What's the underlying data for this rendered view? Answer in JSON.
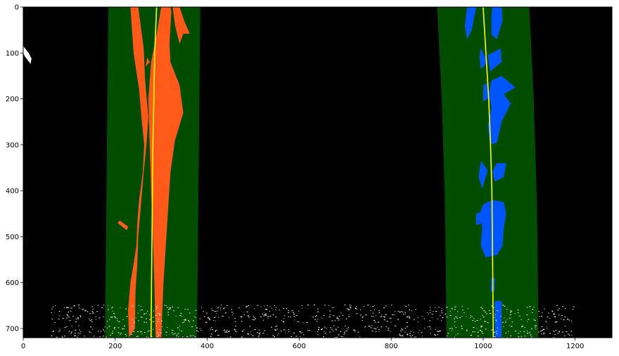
{
  "chart_data": {
    "type": "scatter",
    "title": "",
    "xlabel": "",
    "ylabel": "",
    "xlim": [
      0,
      1280
    ],
    "ylim": [
      720,
      0
    ],
    "y_inverted": true,
    "grid": false,
    "background": "#000000",
    "x_ticks": [
      0,
      200,
      400,
      600,
      800,
      1000,
      1200
    ],
    "y_ticks": [
      0,
      100,
      200,
      300,
      400,
      500,
      600,
      700
    ],
    "colors": {
      "search_window": "#004d00",
      "left_lane_pixels": "#ff5a1a",
      "right_lane_pixels": "#0055ff",
      "fit_line": "#ffff00",
      "noise_pixels": "#ffffff"
    },
    "search_windows": [
      {
        "name": "left-window",
        "left_edge": [
          [
            185,
            0
          ],
          [
            184,
            100
          ],
          [
            183,
            200
          ],
          [
            182,
            300
          ],
          [
            181,
            400
          ],
          [
            180,
            500
          ],
          [
            179,
            600
          ],
          [
            178,
            720
          ]
        ],
        "right_edge": [
          [
            385,
            0
          ],
          [
            384,
            100
          ],
          [
            383,
            200
          ],
          [
            382,
            300
          ],
          [
            381,
            400
          ],
          [
            380,
            500
          ],
          [
            379,
            600
          ],
          [
            378,
            720
          ]
        ]
      },
      {
        "name": "right-window",
        "left_edge": [
          [
            900,
            0
          ],
          [
            905,
            100
          ],
          [
            910,
            200
          ],
          [
            913,
            300
          ],
          [
            916,
            400
          ],
          [
            918,
            500
          ],
          [
            919,
            600
          ],
          [
            920,
            720
          ]
        ],
        "right_edge": [
          [
            1100,
            0
          ],
          [
            1105,
            100
          ],
          [
            1110,
            200
          ],
          [
            1113,
            300
          ],
          [
            1116,
            400
          ],
          [
            1118,
            500
          ],
          [
            1119,
            600
          ],
          [
            1120,
            720
          ]
        ]
      }
    ],
    "series": [
      {
        "role": "lane_pixels",
        "color": "#ff5a1a",
        "regions": [
          [
            [
              233,
              0
            ],
            [
              250,
              0
            ],
            [
              262,
              90
            ],
            [
              265,
              160
            ],
            [
              272,
              240
            ],
            [
              268,
              300
            ],
            [
              262,
              360
            ],
            [
              256,
              430
            ],
            [
              250,
              500
            ],
            [
              248,
              560
            ],
            [
              244,
              620
            ],
            [
              243,
              700
            ],
            [
              230,
              720
            ],
            [
              228,
              660
            ],
            [
              233,
              600
            ],
            [
              240,
              560
            ],
            [
              246,
              520
            ],
            [
              248,
              470
            ],
            [
              252,
              420
            ],
            [
              260,
              360
            ],
            [
              263,
              300
            ],
            [
              258,
              250
            ],
            [
              252,
              180
            ],
            [
              240,
              100
            ]
          ],
          [
            [
              300,
              0
            ],
            [
              320,
              0
            ],
            [
              322,
              10
            ],
            [
              318,
              80
            ],
            [
              320,
              120
            ],
            [
              340,
              170
            ],
            [
              348,
              230
            ],
            [
              330,
              290
            ],
            [
              320,
              360
            ],
            [
              315,
              440
            ],
            [
              310,
              520
            ],
            [
              305,
              600
            ],
            [
              300,
              720
            ],
            [
              288,
              720
            ],
            [
              285,
              600
            ],
            [
              282,
              500
            ],
            [
              278,
              400
            ],
            [
              275,
              300
            ],
            [
              272,
              200
            ],
            [
              278,
              120
            ],
            [
              290,
              60
            ]
          ],
          [
            [
              325,
              0
            ],
            [
              340,
              0
            ],
            [
              350,
              30
            ],
            [
              362,
              58
            ],
            [
              348,
              58
            ],
            [
              340,
              80
            ],
            [
              330,
              40
            ]
          ],
          [
            [
              270,
              110
            ],
            [
              275,
              120
            ],
            [
              266,
              130
            ]
          ],
          [
            [
              210,
              465
            ],
            [
              228,
              478
            ],
            [
              225,
              486
            ],
            [
              205,
              470
            ]
          ]
        ]
      },
      {
        "role": "lane_pixels",
        "color": "#0055ff",
        "regions": [
          [
            [
              965,
              0
            ],
            [
              985,
              0
            ],
            [
              975,
              50
            ],
            [
              965,
              70
            ],
            [
              960,
              40
            ]
          ],
          [
            [
              1020,
              0
            ],
            [
              1040,
              0
            ],
            [
              1042,
              30
            ],
            [
              1030,
              70
            ],
            [
              1018,
              60
            ],
            [
              1018,
              20
            ]
          ],
          [
            [
              995,
              90
            ],
            [
              1010,
              120
            ],
            [
              995,
              135
            ],
            [
              992,
              110
            ]
          ],
          [
            [
              1010,
              105
            ],
            [
              1038,
              90
            ],
            [
              1040,
              120
            ],
            [
              1015,
              140
            ]
          ],
          [
            [
              1018,
              160
            ],
            [
              1040,
              150
            ],
            [
              1070,
              175
            ],
            [
              1045,
              190
            ],
            [
              1060,
              210
            ],
            [
              1040,
              250
            ],
            [
              1030,
              295
            ],
            [
              1015,
              300
            ],
            [
              1010,
              260
            ],
            [
              1018,
              220
            ],
            [
              1012,
              190
            ]
          ],
          [
            [
              1000,
              170
            ],
            [
              1012,
              165
            ],
            [
              1010,
              200
            ],
            [
              1000,
              205
            ]
          ],
          [
            [
              1030,
              340
            ],
            [
              1050,
              340
            ],
            [
              1045,
              370
            ],
            [
              1025,
              380
            ],
            [
              1020,
              358
            ]
          ],
          [
            [
              995,
              335
            ],
            [
              1010,
              355
            ],
            [
              998,
              395
            ],
            [
              990,
              370
            ]
          ],
          [
            [
              1000,
              430
            ],
            [
              1020,
              420
            ],
            [
              1045,
              425
            ],
            [
              1050,
              450
            ],
            [
              1045,
              480
            ],
            [
              1042,
              520
            ],
            [
              1030,
              540
            ],
            [
              1005,
              545
            ],
            [
              995,
              520
            ],
            [
              998,
              480
            ],
            [
              993,
              450
            ]
          ],
          [
            [
              985,
              450
            ],
            [
              1000,
              445
            ],
            [
              998,
              470
            ],
            [
              985,
              475
            ]
          ],
          [
            [
              1025,
              640
            ],
            [
              1040,
              640
            ],
            [
              1040,
              720
            ],
            [
              1025,
              720
            ]
          ],
          [
            [
              1018,
              590
            ],
            [
              1026,
              590
            ],
            [
              1024,
              620
            ],
            [
              1016,
              620
            ]
          ]
        ]
      },
      {
        "role": "fit_line",
        "color": "#ffff00",
        "width": 1.6,
        "points": [
          [
            290,
            0
          ],
          [
            286,
            100
          ],
          [
            284,
            200
          ],
          [
            282,
            300
          ],
          [
            281,
            400
          ],
          [
            280,
            500
          ],
          [
            279,
            600
          ],
          [
            278,
            720
          ]
        ]
      },
      {
        "role": "fit_line",
        "color": "#ffff00",
        "width": 1.6,
        "points": [
          [
            1000,
            0
          ],
          [
            1006,
            100
          ],
          [
            1012,
            200
          ],
          [
            1016,
            300
          ],
          [
            1019,
            400
          ],
          [
            1020,
            500
          ],
          [
            1021,
            600
          ],
          [
            1022,
            720
          ]
        ]
      },
      {
        "role": "noise_regions",
        "color": "#ffffff",
        "regions": [
          [
            [
              0,
              85
            ],
            [
              12,
              100
            ],
            [
              18,
              112
            ],
            [
              16,
              124
            ],
            [
              4,
              108
            ],
            [
              0,
              100
            ]
          ]
        ]
      },
      {
        "role": "noise_points",
        "color": "#ffffff",
        "count": 900,
        "rows": [
          [
            655,
            0.05
          ],
          [
            668,
            0.06
          ],
          [
            680,
            0.06
          ],
          [
            700,
            0.05
          ],
          [
            712,
            0.06
          ]
        ],
        "x_min": 60,
        "x_max": 1200
      }
    ]
  }
}
